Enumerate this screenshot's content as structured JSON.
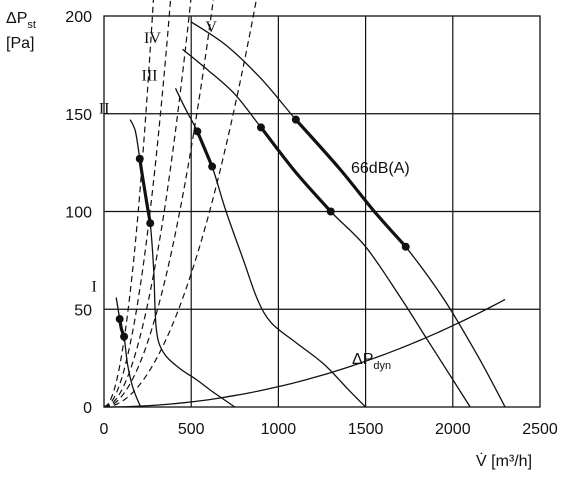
{
  "chart_data": {
    "type": "line",
    "xlabel": "V̇ [m³/h]",
    "ylabel_main": "ΔP",
    "ylabel_sub": "st",
    "ylabel_unit": "[Pa]",
    "xlim": [
      0,
      2500
    ],
    "ylim": [
      0,
      200
    ],
    "x_ticks": [
      0,
      500,
      1000,
      1500,
      2000,
      2500
    ],
    "y_ticks": [
      0,
      50,
      100,
      150,
      200
    ],
    "grid": true,
    "fan_curves": [
      {
        "name": "I",
        "points": [
          [
            70,
            56
          ],
          [
            90,
            45
          ],
          [
            100,
            40
          ],
          [
            115,
            36
          ],
          [
            135,
            22
          ],
          [
            165,
            10
          ],
          [
            210,
            0
          ]
        ],
        "marked": [
          [
            90,
            45
          ],
          [
            115,
            36
          ]
        ]
      },
      {
        "name": "II",
        "points": [
          [
            150,
            147
          ],
          [
            180,
            141
          ],
          [
            205,
            127
          ],
          [
            235,
            110
          ],
          [
            265,
            94
          ],
          [
            285,
            70
          ],
          [
            300,
            40
          ],
          [
            340,
            28
          ],
          [
            430,
            20
          ],
          [
            530,
            14
          ],
          [
            620,
            8
          ],
          [
            750,
            0
          ]
        ],
        "marked": [
          [
            205,
            127
          ],
          [
            265,
            94
          ]
        ]
      },
      {
        "name": "III",
        "points": [
          [
            410,
            163
          ],
          [
            470,
            152
          ],
          [
            535,
            141
          ],
          [
            620,
            123
          ],
          [
            700,
            100
          ],
          [
            800,
            75
          ],
          [
            880,
            55
          ],
          [
            960,
            43
          ],
          [
            1100,
            33
          ],
          [
            1260,
            22
          ],
          [
            1400,
            9
          ],
          [
            1500,
            0
          ]
        ],
        "marked": [
          [
            535,
            141
          ],
          [
            620,
            123
          ]
        ]
      },
      {
        "name": "IV",
        "points": [
          [
            450,
            183
          ],
          [
            600,
            172
          ],
          [
            750,
            160
          ],
          [
            900,
            143
          ],
          [
            1100,
            120
          ],
          [
            1300,
            100
          ],
          [
            1500,
            82
          ],
          [
            1700,
            56
          ],
          [
            1850,
            35
          ],
          [
            2000,
            14
          ],
          [
            2100,
            0
          ]
        ],
        "marked": [
          [
            900,
            143
          ],
          [
            1300,
            100
          ]
        ]
      },
      {
        "name": "V",
        "points": [
          [
            500,
            197
          ],
          [
            700,
            185
          ],
          [
            900,
            168
          ],
          [
            1100,
            147
          ],
          [
            1350,
            122
          ],
          [
            1550,
            100
          ],
          [
            1730,
            82
          ],
          [
            1950,
            55
          ],
          [
            2150,
            25
          ],
          [
            2300,
            0
          ]
        ],
        "marked": [
          [
            1100,
            147
          ],
          [
            1730,
            82
          ]
        ]
      }
    ],
    "system_curves_k": [
      0.0026,
      0.00143,
      0.00084,
      0.00053,
      0.000273
    ],
    "system_curve_xmax": [
      830,
      1250,
      1520,
      1800,
      2300
    ],
    "dynamic_pressure_k": 1.04e-05,
    "dynamic_pressure_label_main": "ΔP",
    "dynamic_pressure_label_sub": "dyn",
    "sound_level_label": "66dB(A)"
  }
}
